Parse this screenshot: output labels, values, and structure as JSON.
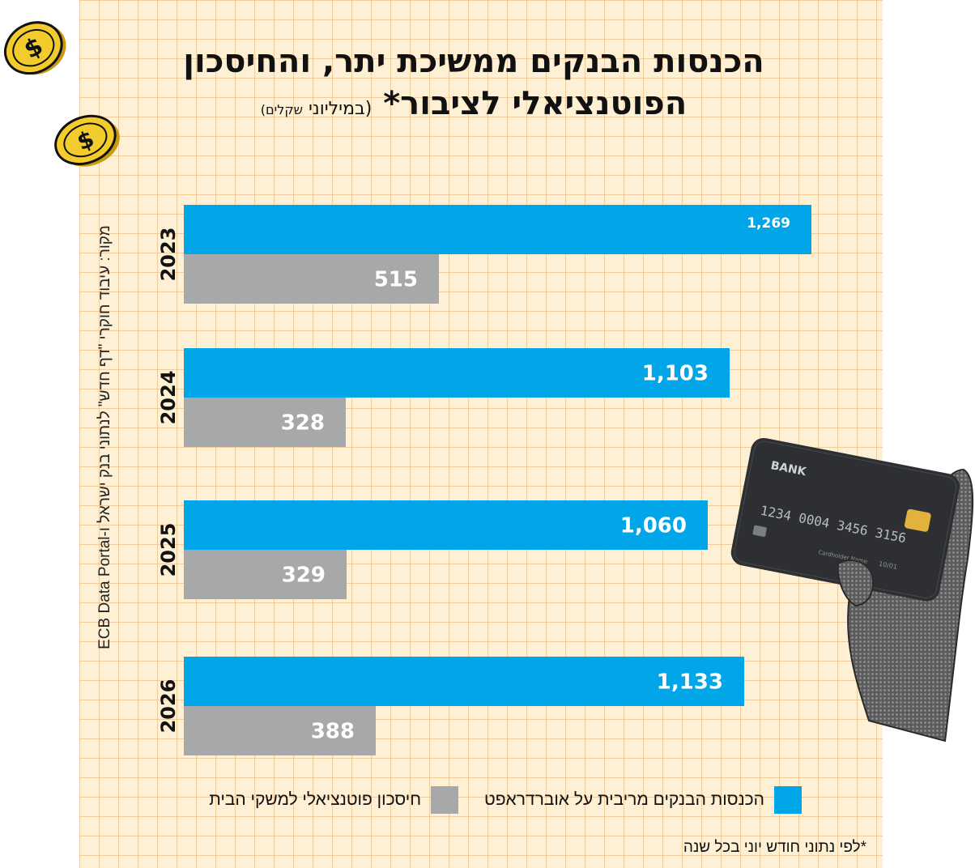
{
  "title": {
    "line1": "הכנסות הבנקים ממשיכת יתר, והחיסכון",
    "line2": "הפוטנציאלי לציבור*",
    "sub_open": "(במיליוני",
    "sub_small": "שקלים)"
  },
  "source": "מקור: עיבוד חוקרי \"דף חדש\" לנתוני בנק ישראל ו-ECB Data Portal",
  "footnote": "*לפי נתוני חודש יוני בכל שנה",
  "legend": {
    "revenue": "הכנסות הבנקים מריבית על אוברדראפט",
    "savings": "חיסכון פוטנציאלי למשקי הבית"
  },
  "colors": {
    "revenue": "#00a6e8",
    "savings": "#a7a8aa",
    "background": "#fdf0d4",
    "grid": "#e8b06e"
  },
  "art": {
    "card_brand": "BANK",
    "card_number": "1234 0004 3456 3156",
    "card_expiry": "10/01",
    "card_holder": "Cardholder Name"
  },
  "icons": [
    "dollar-coin-icon",
    "credit-card-icon",
    "hand-icon"
  ],
  "chart_data": {
    "type": "bar",
    "orientation": "horizontal",
    "categories": [
      "2023",
      "2024",
      "2025",
      "2026"
    ],
    "series": [
      {
        "name": "הכנסות הבנקים מריבית על אוברדראפט",
        "values": [
          1269,
          1103,
          1060,
          1133
        ],
        "labels": [
          "1,269",
          "1,103",
          "1,060",
          "1,133"
        ]
      },
      {
        "name": "חיסכון פוטנציאלי למשקי הבית",
        "values": [
          515,
          328,
          329,
          388
        ],
        "labels": [
          "515",
          "328",
          "329",
          "388"
        ]
      }
    ],
    "xlim": [
      0,
      1269
    ],
    "grid": false,
    "legend_position": "bottom"
  }
}
